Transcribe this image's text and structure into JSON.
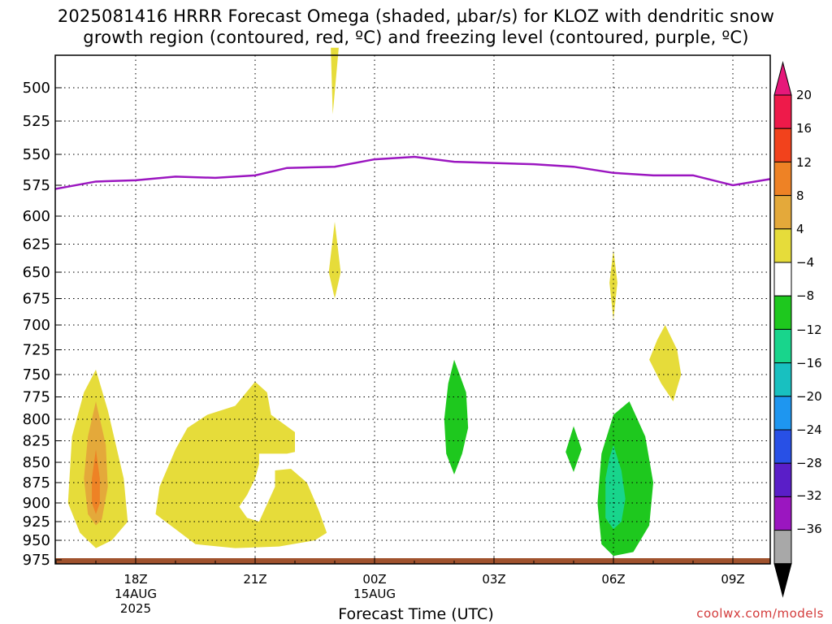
{
  "title_line1": "2025081416 HRRR Forecast Omega (shaded, μbar/s) for KLOZ with dendritic snow",
  "title_line2": "growth region (contoured, red, ºC) and freezing level (contoured, purple, ºC)",
  "xlabel": "Forecast Time (UTC)",
  "credit": "coolwx.com/models",
  "chart_data": {
    "type": "heatmap",
    "y_axis": {
      "scale": "pressure",
      "inverted": true,
      "ticks": [
        500,
        525,
        550,
        575,
        600,
        625,
        650,
        675,
        700,
        725,
        750,
        775,
        800,
        825,
        850,
        875,
        900,
        925,
        950,
        975
      ]
    },
    "x_axis": {
      "range_hours_start": "2025-08-14 16Z",
      "ticks": [
        {
          "label": "18Z",
          "sub": "14AUG",
          "sub2": "2025",
          "hour": 2
        },
        {
          "label": "21Z",
          "sub": "",
          "sub2": "",
          "hour": 5
        },
        {
          "label": "00Z",
          "sub": "15AUG",
          "sub2": "",
          "hour": 8
        },
        {
          "label": "03Z",
          "sub": "",
          "sub2": "",
          "hour": 11
        },
        {
          "label": "06Z",
          "sub": "",
          "sub2": "",
          "hour": 14
        },
        {
          "label": "09Z",
          "sub": "",
          "sub2": "",
          "hour": 17
        }
      ]
    },
    "grid": true,
    "colorbar": {
      "labels": [
        "20",
        "16",
        "12",
        "8",
        "4",
        "−4",
        "−8",
        "−12",
        "−16",
        "−20",
        "−24",
        "−28",
        "−32",
        "−36"
      ],
      "colors": [
        "#ee1a4a",
        "#f2421c",
        "#ee8225",
        "#e4a93a",
        "#e6dc3a",
        "#ffffff",
        "#1ec81e",
        "#18d58c",
        "#18c0c0",
        "#1e96f0",
        "#2850e6",
        "#5a1ec8",
        "#9b16c0",
        "#a8a8a8"
      ],
      "top_arrow_color": "#e6187a",
      "bottom_arrow_color": "#000000"
    },
    "freezing_level": {
      "color": "#9b16c0",
      "points": [
        {
          "hour": -0.1,
          "p": 578
        },
        {
          "hour": 1,
          "p": 572
        },
        {
          "hour": 2,
          "p": 571
        },
        {
          "hour": 3,
          "p": 568
        },
        {
          "hour": 4,
          "p": 569
        },
        {
          "hour": 5,
          "p": 567
        },
        {
          "hour": 5.8,
          "p": 561
        },
        {
          "hour": 7,
          "p": 560
        },
        {
          "hour": 8,
          "p": 554
        },
        {
          "hour": 9,
          "p": 552
        },
        {
          "hour": 10,
          "p": 556
        },
        {
          "hour": 11,
          "p": 557
        },
        {
          "hour": 12,
          "p": 558
        },
        {
          "hour": 13,
          "p": 560
        },
        {
          "hour": 14,
          "p": 565
        },
        {
          "hour": 15,
          "p": 567
        },
        {
          "hour": 16,
          "p": 567
        },
        {
          "hour": 17,
          "p": 575
        },
        {
          "hour": 18,
          "p": 570
        }
      ]
    },
    "terrain_color": "#a0522d"
  }
}
